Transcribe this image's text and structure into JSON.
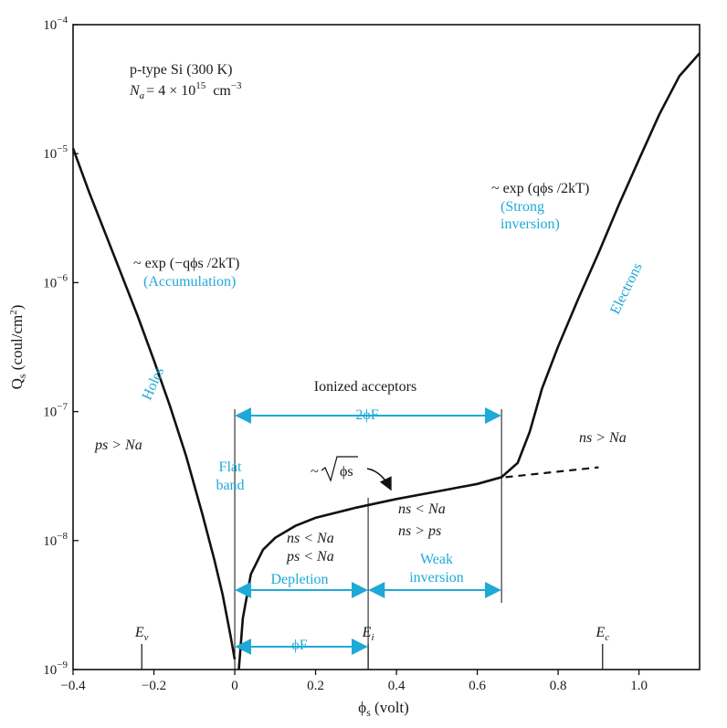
{
  "chart_data": {
    "type": "line",
    "xlabel": "ϕs (volt)",
    "ylabel": "Qs (coul/cm²)",
    "xlim": [
      -0.4,
      1.15
    ],
    "ylim": [
      1e-09,
      0.0001
    ],
    "yscale": "log",
    "grid": false,
    "x_ticks": [
      {
        "v": -0.4,
        "label": "−0.4"
      },
      {
        "v": -0.2,
        "label": "−0.2"
      },
      {
        "v": 0.0,
        "label": "0"
      },
      {
        "v": 0.2,
        "label": "0.2"
      },
      {
        "v": 0.4,
        "label": "0.4"
      },
      {
        "v": 0.6,
        "label": "0.6"
      },
      {
        "v": 0.8,
        "label": "0.8"
      },
      {
        "v": 1.0,
        "label": "1.0"
      }
    ],
    "y_ticks": [
      {
        "v": 1e-09,
        "base": "10",
        "exp": "−9"
      },
      {
        "v": 1e-08,
        "base": "10",
        "exp": "−8"
      },
      {
        "v": 1e-07,
        "base": "10",
        "exp": "−7"
      },
      {
        "v": 1e-06,
        "base": "10",
        "exp": "−6"
      },
      {
        "v": 1e-05,
        "base": "10",
        "exp": "−5"
      },
      {
        "v": 0.0001,
        "base": "10",
        "exp": "−4"
      }
    ],
    "curve": {
      "x": [
        -0.4,
        -0.36,
        -0.32,
        -0.28,
        -0.24,
        -0.2,
        -0.16,
        -0.12,
        -0.08,
        -0.05,
        -0.03,
        -0.01,
        0.0
      ],
      "y": [
        1.1e-05,
        5e-06,
        2.4e-06,
        1.15e-06,
        5.5e-07,
        2.5e-07,
        1.1e-07,
        4.5e-08,
        1.6e-08,
        7e-09,
        3.8e-09,
        1.8e-09,
        1.2e-09
      ]
    },
    "curve_right": {
      "x": [
        0.01,
        0.02,
        0.04,
        0.07,
        0.1,
        0.15,
        0.2,
        0.3,
        0.4,
        0.5,
        0.6,
        0.66,
        0.7,
        0.73,
        0.76,
        0.8,
        0.85,
        0.9,
        0.95,
        1.0,
        1.05,
        1.1,
        1.15
      ],
      "y": [
        1e-09,
        2.5e-09,
        5.5e-09,
        8.5e-09,
        1.05e-08,
        1.3e-08,
        1.5e-08,
        1.8e-08,
        2.1e-08,
        2.4e-08,
        2.75e-08,
        3.1e-08,
        4e-08,
        7e-08,
        1.5e-07,
        3.2e-07,
        7.5e-07,
        1.7e-06,
        4e-06,
        9e-06,
        2e-05,
        4e-05,
        6e-05
      ]
    },
    "extrapolation": {
      "x": [
        0.67,
        0.9
      ],
      "y": [
        3.1e-08,
        3.7e-08
      ]
    },
    "reference_lines": {
      "flat_band": 0.0,
      "phi_f": 0.33,
      "two_phi_f": 0.66
    },
    "energy_marks": [
      {
        "x": -0.23,
        "label": "E",
        "sub": "v"
      },
      {
        "x": 0.33,
        "label": "E",
        "sub": "i"
      },
      {
        "x": 0.91,
        "label": "E",
        "sub": "c"
      }
    ],
    "annotations": {
      "material": "p-type Si (300 K)",
      "doping_prefix": "N",
      "doping_sub": "a",
      "doping_eq": "= 4 × 10",
      "doping_exp": "15",
      "doping_unit": "cm",
      "doping_unit_exp": "−3",
      "accum_expr": "~ exp (−qϕs /2kT)",
      "accum_label": "(Accumulation)",
      "strong_expr": "~ exp (qϕs /2kT)",
      "strong_label_1": "(Strong",
      "strong_label_2": "inversion)",
      "holes": "Holes",
      "electrons": "Electrons",
      "ionized": "Ionized acceptors",
      "two_phi_f_label": "2ϕF",
      "phi_f_label": "ϕF",
      "flat_band_1": "Flat",
      "flat_band_2": "band",
      "sqrt_prefix": "~",
      "sqrt_arg": "ϕs",
      "depletion": "Depletion",
      "weak_1": "Weak",
      "weak_2": "inversion",
      "ps_gt_na": "ps > Na",
      "ns_gt_na": "ns > Na",
      "depl_cond_1": "ns < Na",
      "depl_cond_2": "ps < Na",
      "weak_cond_1": "ns < Na",
      "weak_cond_2": "ns > ps"
    }
  }
}
